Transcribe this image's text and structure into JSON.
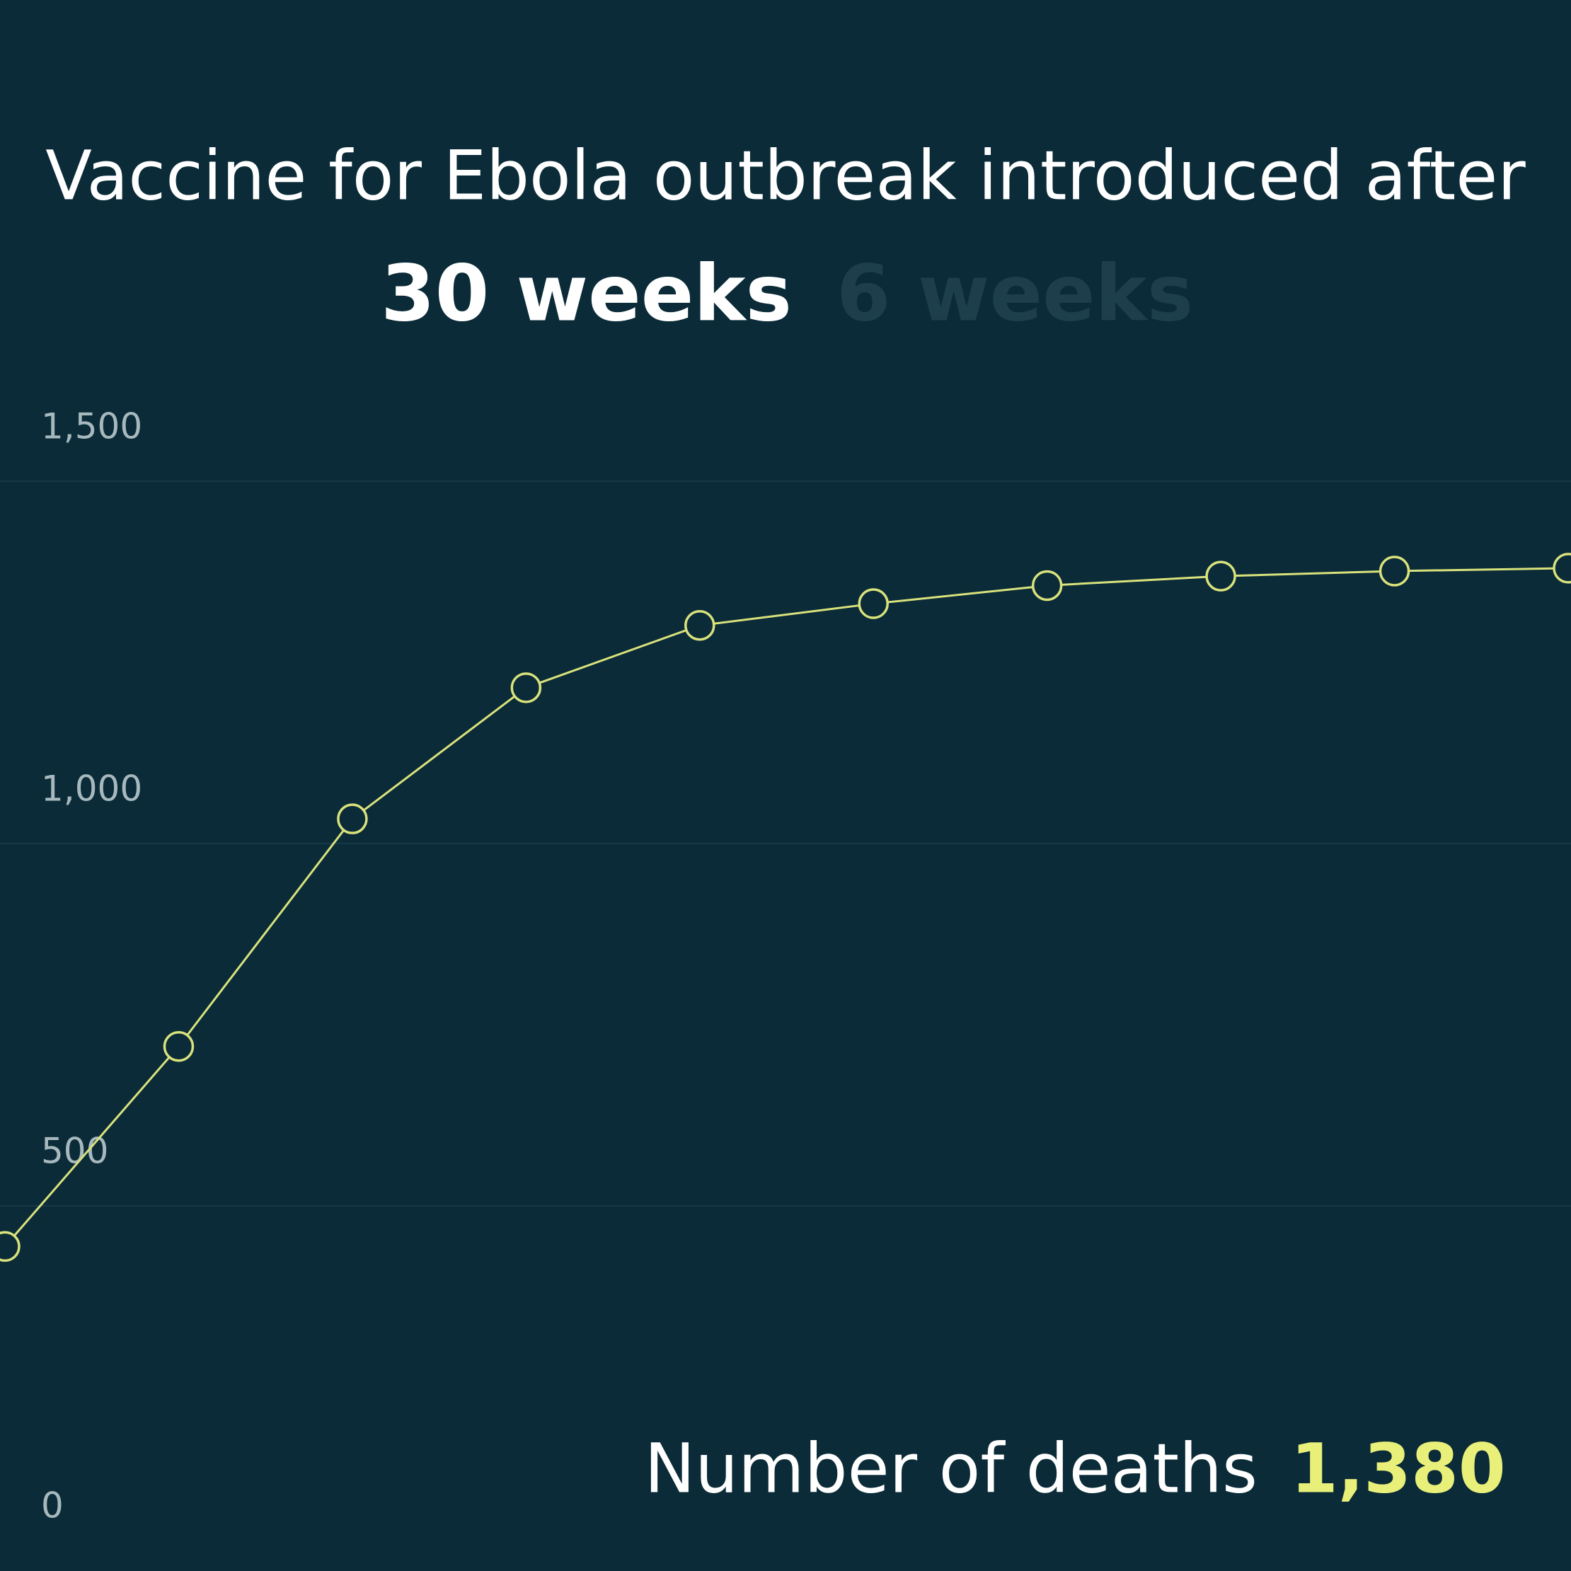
{
  "chart_data": {
    "type": "line",
    "title": "Vaccine for Ebola outbreak introduced after",
    "options": [
      "30 weeks",
      "6 weeks"
    ],
    "annotation": {
      "label": "Number of deaths",
      "value": "1,380"
    },
    "categories": [
      null,
      null,
      null,
      null,
      null,
      null,
      null,
      null,
      null,
      null
    ],
    "series": [
      {
        "color": "#d9e27c",
        "values": [
          444,
          720,
          1034,
          1215,
          1301,
          1331,
          1356,
          1369,
          1376,
          1380
        ]
      }
    ],
    "ylim": [
      0,
      1500
    ],
    "yticks": [
      0,
      500,
      {
        "value": 1000,
        "label": "1,000"
      },
      {
        "value": 1500,
        "label": "1,500"
      }
    ],
    "grid": true
  }
}
